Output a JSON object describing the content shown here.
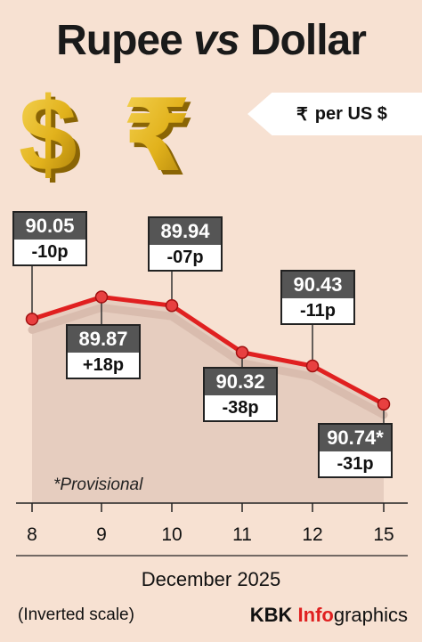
{
  "title": {
    "main": "Rupee",
    "vs": "vs",
    "tail": "Dollar"
  },
  "unit": {
    "symbol": "₹",
    "text": "per US $"
  },
  "icons": [
    "dollar-sign-3d-icon",
    "rupee-sign-3d-icon"
  ],
  "colors": {
    "line": "#e02020",
    "background": "#f7e1d2",
    "value_box": "#555555",
    "symbol_gold": "#e8b820"
  },
  "chart_data": {
    "type": "line",
    "inverted_y": true,
    "categories": [
      "8",
      "9",
      "10",
      "11",
      "12",
      "15"
    ],
    "values": [
      90.05,
      89.87,
      89.94,
      90.32,
      90.43,
      90.74
    ],
    "labels": [
      "90.05",
      "89.87",
      "89.94",
      "90.32",
      "90.43",
      "90.74*"
    ],
    "changes": [
      "-10p",
      "+18p",
      "-07p",
      "-38p",
      "-11p",
      "-31p"
    ],
    "ylim": [
      89.7,
      90.9
    ],
    "xlabel": "December 2025",
    "grid": false
  },
  "notes": {
    "provisional": "*Provisional",
    "scale": "(Inverted scale)"
  },
  "credit": {
    "part1": "KBK ",
    "part2": "Info",
    "part3": "graphics"
  }
}
